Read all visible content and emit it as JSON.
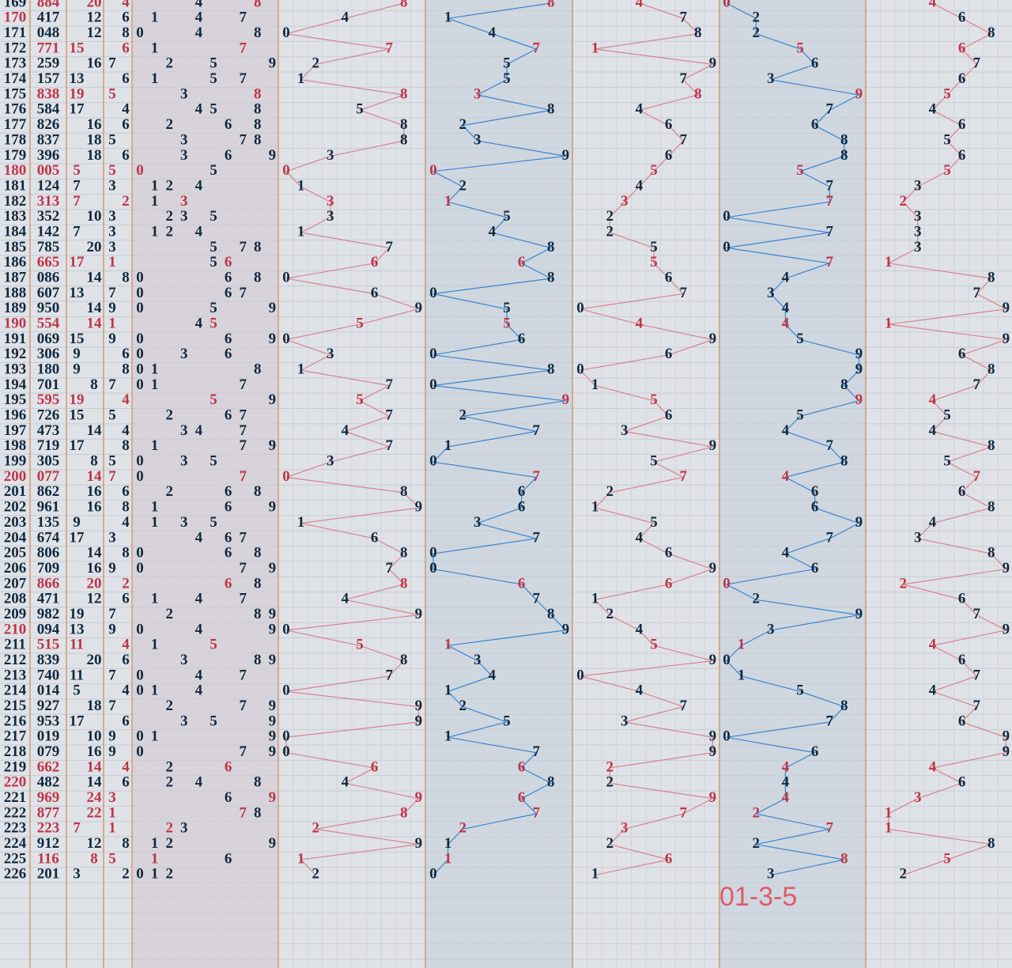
{
  "rows": [
    [
      169,
      "884",
      20,
      4,
      0,
      [
        8,
        8,
        4
      ]
    ],
    [
      170,
      "417",
      12,
      6,
      2,
      [
        4,
        1,
        7
      ]
    ],
    [
      171,
      "048",
      12,
      8,
      2,
      [
        0,
        4,
        8
      ]
    ],
    [
      172,
      "771",
      15,
      6,
      5,
      [
        7,
        7,
        1
      ]
    ],
    [
      173,
      "259",
      16,
      7,
      6,
      [
        2,
        5,
        9
      ]
    ],
    [
      174,
      "157",
      13,
      6,
      3,
      [
        1,
        5,
        7
      ]
    ],
    [
      175,
      "838",
      19,
      5,
      9,
      [
        8,
        3,
        8
      ]
    ],
    [
      176,
      "584",
      17,
      4,
      7,
      [
        5,
        8,
        4
      ]
    ],
    [
      177,
      "826",
      16,
      6,
      6,
      [
        8,
        2,
        6
      ]
    ],
    [
      178,
      "837",
      18,
      5,
      8,
      [
        8,
        3,
        7
      ]
    ],
    [
      179,
      "396",
      18,
      6,
      8,
      [
        3,
        9,
        6
      ]
    ],
    [
      180,
      "005",
      5,
      5,
      5,
      [
        0,
        0,
        5
      ]
    ],
    [
      181,
      "124",
      7,
      3,
      7,
      [
        1,
        2,
        4
      ]
    ],
    [
      182,
      "313",
      7,
      2,
      7,
      [
        3,
        1,
        3
      ]
    ],
    [
      183,
      "352",
      10,
      3,
      0,
      [
        3,
        5,
        2
      ]
    ],
    [
      184,
      "142",
      7,
      3,
      7,
      [
        1,
        4,
        2
      ]
    ],
    [
      185,
      "785",
      20,
      3,
      0,
      [
        7,
        8,
        5
      ]
    ],
    [
      186,
      "665",
      17,
      1,
      7,
      [
        6,
        6,
        5
      ]
    ],
    [
      187,
      "086",
      14,
      8,
      4,
      [
        0,
        8,
        6
      ]
    ],
    [
      188,
      "607",
      13,
      7,
      3,
      [
        6,
        0,
        7
      ]
    ],
    [
      189,
      "950",
      14,
      9,
      4,
      [
        9,
        5,
        0
      ]
    ],
    [
      190,
      "554",
      14,
      1,
      4,
      [
        5,
        5,
        4
      ]
    ],
    [
      191,
      "069",
      15,
      9,
      5,
      [
        0,
        6,
        9
      ]
    ],
    [
      192,
      "306",
      9,
      6,
      9,
      [
        3,
        0,
        6
      ]
    ],
    [
      193,
      "180",
      9,
      8,
      9,
      [
        1,
        8,
        0
      ]
    ],
    [
      194,
      "701",
      8,
      7,
      8,
      [
        7,
        0,
        1
      ]
    ],
    [
      195,
      "595",
      19,
      4,
      9,
      [
        5,
        9,
        5
      ]
    ],
    [
      196,
      "726",
      15,
      5,
      5,
      [
        7,
        2,
        6
      ]
    ],
    [
      197,
      "473",
      14,
      4,
      4,
      [
        4,
        7,
        3
      ]
    ],
    [
      198,
      "719",
      17,
      8,
      7,
      [
        7,
        1,
        9
      ]
    ],
    [
      199,
      "305",
      8,
      5,
      8,
      [
        3,
        0,
        5
      ]
    ],
    [
      200,
      "077",
      14,
      7,
      4,
      [
        0,
        7,
        7
      ]
    ],
    [
      201,
      "862",
      16,
      6,
      6,
      [
        8,
        6,
        2
      ]
    ],
    [
      202,
      "961",
      16,
      8,
      6,
      [
        9,
        6,
        1
      ]
    ],
    [
      203,
      "135",
      9,
      4,
      9,
      [
        1,
        3,
        5
      ]
    ],
    [
      204,
      "674",
      17,
      3,
      7,
      [
        6,
        7,
        4
      ]
    ],
    [
      205,
      "806",
      14,
      8,
      4,
      [
        8,
        0,
        6
      ]
    ],
    [
      206,
      "709",
      16,
      9,
      6,
      [
        7,
        0,
        9
      ]
    ],
    [
      207,
      "866",
      20,
      2,
      0,
      [
        8,
        6,
        6
      ]
    ],
    [
      208,
      "471",
      12,
      6,
      2,
      [
        4,
        7,
        1
      ]
    ],
    [
      209,
      "982",
      19,
      7,
      9,
      [
        9,
        8,
        2
      ]
    ],
    [
      210,
      "094",
      13,
      9,
      3,
      [
        0,
        9,
        4
      ]
    ],
    [
      211,
      "515",
      11,
      4,
      1,
      [
        5,
        1,
        5
      ]
    ],
    [
      212,
      "839",
      20,
      6,
      0,
      [
        8,
        3,
        9
      ]
    ],
    [
      213,
      "740",
      11,
      7,
      1,
      [
        7,
        4,
        0
      ]
    ],
    [
      214,
      "014",
      5,
      4,
      5,
      [
        0,
        1,
        4
      ]
    ],
    [
      215,
      "927",
      18,
      7,
      8,
      [
        9,
        2,
        7
      ]
    ],
    [
      216,
      "953",
      17,
      6,
      7,
      [
        9,
        5,
        3
      ]
    ],
    [
      217,
      "019",
      10,
      9,
      0,
      [
        0,
        1,
        9
      ]
    ],
    [
      218,
      "079",
      16,
      9,
      6,
      [
        0,
        7,
        9
      ]
    ],
    [
      219,
      "662",
      14,
      4,
      4,
      [
        6,
        6,
        2
      ]
    ],
    [
      220,
      "482",
      14,
      6,
      4,
      [
        4,
        8,
        2
      ]
    ],
    [
      221,
      "969",
      24,
      3,
      4,
      [
        9,
        6,
        9
      ]
    ],
    [
      222,
      "877",
      22,
      1,
      2,
      [
        8,
        7,
        7
      ]
    ],
    [
      223,
      "223",
      7,
      1,
      7,
      [
        2,
        2,
        3
      ]
    ],
    [
      224,
      "912",
      12,
      8,
      2,
      [
        9,
        1,
        2
      ]
    ],
    [
      225,
      "116",
      8,
      5,
      8,
      [
        1,
        1,
        6
      ]
    ],
    [
      226,
      "201",
      3,
      2,
      3,
      [
        2,
        0,
        1
      ]
    ]
  ],
  "annotation": "01-3-5"
}
